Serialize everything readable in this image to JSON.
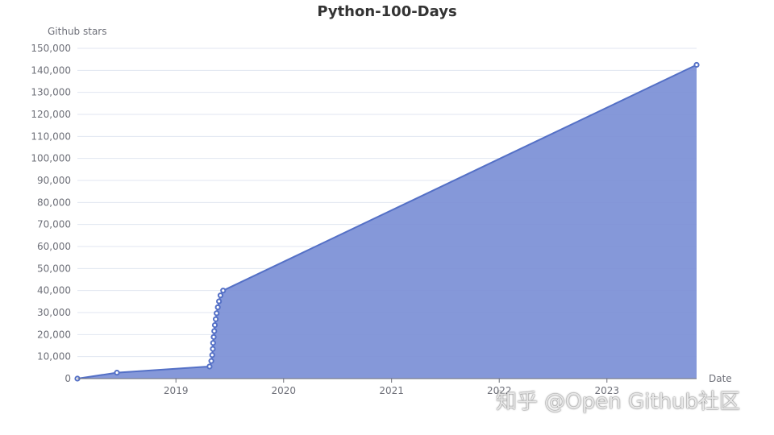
{
  "chart_data": {
    "type": "area",
    "title": "Python-100-Days",
    "ylabel": "Github stars",
    "xlabel": "Date",
    "ylim": [
      0,
      150000
    ],
    "yticks": [
      0,
      10000,
      20000,
      30000,
      40000,
      50000,
      60000,
      70000,
      80000,
      90000,
      100000,
      110000,
      120000,
      130000,
      140000,
      150000
    ],
    "xlim": [
      "2018-02-01",
      "2023-11-01"
    ],
    "xticks": [
      {
        "date": "2019-01-01",
        "label": "2019"
      },
      {
        "date": "2020-01-01",
        "label": "2020"
      },
      {
        "date": "2021-01-01",
        "label": "2021"
      },
      {
        "date": "2022-01-01",
        "label": "2022"
      },
      {
        "date": "2023-01-01",
        "label": "2023"
      }
    ],
    "grid": true,
    "color": "#5470c6",
    "area_color": "#7b8fd6",
    "series": [
      {
        "points": [
          {
            "x": "2018-02-01",
            "y": 0
          },
          {
            "x": "2018-06-15",
            "y": 2700
          },
          {
            "x": "2019-04-25",
            "y": 5500
          },
          {
            "x": "2019-05-01",
            "y": 8000
          },
          {
            "x": "2019-05-04",
            "y": 10700
          },
          {
            "x": "2019-05-06",
            "y": 13500
          },
          {
            "x": "2019-05-07",
            "y": 16200
          },
          {
            "x": "2019-05-09",
            "y": 18900
          },
          {
            "x": "2019-05-11",
            "y": 21600
          },
          {
            "x": "2019-05-13",
            "y": 24300
          },
          {
            "x": "2019-05-16",
            "y": 27000
          },
          {
            "x": "2019-05-19",
            "y": 29700
          },
          {
            "x": "2019-05-23",
            "y": 32400
          },
          {
            "x": "2019-05-27",
            "y": 35100
          },
          {
            "x": "2019-06-01",
            "y": 37800
          },
          {
            "x": "2019-06-10",
            "y": 40000
          },
          {
            "x": "2023-11-01",
            "y": 142500
          }
        ]
      }
    ]
  },
  "watermark": "知乎 @Open Github社区"
}
